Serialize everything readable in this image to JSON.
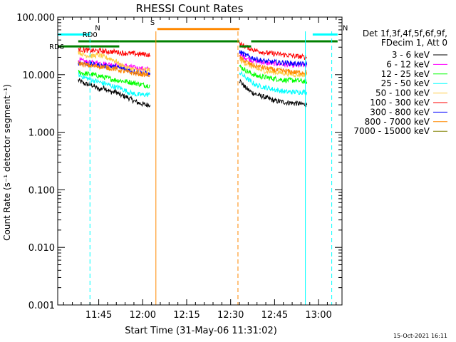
{
  "chart_data": {
    "type": "line",
    "title": "RHESSI Count Rates",
    "xlabel": "Start Time (31-May-06 11:31:02)",
    "ylabel": "Count Rate (s⁻¹ detector segment⁻¹)",
    "yscale": "log",
    "ylim": [
      0.001,
      100
    ],
    "xlim_minutes_after_start": [
      0,
      97
    ],
    "x_ticks": [
      "11:45",
      "12:00",
      "12:15",
      "12:30",
      "12:45",
      "13:00"
    ],
    "y_ticks": [
      "0.001",
      "0.010",
      "0.100",
      "1.000",
      "10.000",
      "100.000"
    ],
    "legend_header": [
      "Det 1f,3f,4f,5f,6f,9f,",
      "FDecim 1, Att 0"
    ],
    "legend_position": "top-right",
    "timestamp": "15-Oct-2021 16:11",
    "series": [
      {
        "name": "3 - 6 keV",
        "color": "#000000",
        "segments": [
          {
            "x": [
              7,
              9,
              12,
              14,
              16,
              18,
              20,
              21
            ],
            "y": [
              8,
              7,
              6.5,
              5.5,
              6,
              5,
              5,
              4.5
            ]
          },
          {
            "x": [
              21,
              24,
              27,
              30,
              31.5
            ],
            "y": [
              4.5,
              4,
              3.3,
              3,
              3
            ]
          },
          {
            "x": [
              62,
              64,
              66,
              68,
              71,
              74,
              78,
              81,
              85
            ],
            "y": [
              8,
              6,
              5,
              4.5,
              4,
              3.5,
              3.3,
              3.2,
              3
            ]
          }
        ]
      },
      {
        "name": "6 - 12 keV",
        "color": "#ff00ff",
        "segments": [
          {
            "x": [
              7,
              9,
              12,
              14,
              16,
              18,
              20,
              21
            ],
            "y": [
              18,
              17,
              16,
              16,
              15.5,
              15,
              15,
              14.5
            ]
          },
          {
            "x": [
              21,
              24,
              27,
              30,
              31.5
            ],
            "y": [
              14.5,
              14,
              13,
              12.5,
              12.5
            ]
          },
          {
            "x": [
              62,
              64,
              66,
              68,
              71,
              74,
              78,
              81,
              85
            ],
            "y": [
              22,
              20,
              18,
              17,
              16,
              15.5,
              15,
              14.5,
              14.5
            ]
          }
        ]
      },
      {
        "name": "12 - 25 keV",
        "color": "#00ff00",
        "segments": [
          {
            "x": [
              7,
              9,
              12,
              14,
              16,
              18,
              20,
              21
            ],
            "y": [
              11,
              10.5,
              10,
              9.5,
              9,
              8.5,
              8,
              8
            ]
          },
          {
            "x": [
              21,
              24,
              27,
              30,
              31.5
            ],
            "y": [
              8,
              7.5,
              7,
              6.5,
              6.5
            ]
          },
          {
            "x": [
              62,
              64,
              66,
              68,
              71,
              74,
              78,
              81,
              85
            ],
            "y": [
              14,
              12,
              10.5,
              9.5,
              9,
              8.5,
              8,
              8,
              7.5
            ]
          }
        ]
      },
      {
        "name": "25 - 50 keV",
        "color": "#00ffff",
        "segments": [
          {
            "x": [
              7,
              9,
              12,
              14,
              16,
              18,
              20,
              21
            ],
            "y": [
              10,
              9,
              8,
              7.5,
              7,
              6.5,
              6,
              6
            ]
          },
          {
            "x": [
              21,
              24,
              27,
              30,
              31.5
            ],
            "y": [
              6,
              5,
              4.5,
              4.5,
              4.5
            ]
          },
          {
            "x": [
              62,
              64,
              66,
              68,
              71,
              74,
              78,
              81,
              85
            ],
            "y": [
              11,
              9,
              7.5,
              6.5,
              6,
              5.5,
              5,
              5,
              5
            ]
          }
        ]
      },
      {
        "name": "50 - 100 keV",
        "color": "#ffcc44",
        "segments": [
          {
            "x": [
              7,
              9,
              12,
              14,
              16,
              18,
              20,
              21
            ],
            "y": [
              25,
              22,
              21,
              22,
              20,
              19,
              17,
              15
            ]
          },
          {
            "x": [
              21,
              24,
              27,
              30,
              31.5
            ],
            "y": [
              15,
              13,
              12,
              12,
              12
            ]
          },
          {
            "x": [
              62,
              64,
              66,
              68,
              71,
              74,
              78,
              81,
              85
            ],
            "y": [
              18,
              16,
              14,
              12.5,
              11.5,
              11,
              10.5,
              10,
              10
            ]
          }
        ]
      },
      {
        "name": "100 - 300 keV",
        "color": "#ff0000",
        "segments": [
          {
            "x": [
              7,
              9,
              12,
              14,
              16,
              18,
              20,
              21
            ],
            "y": [
              28,
              27,
              26,
              26,
              25.5,
              25,
              25,
              24
            ]
          },
          {
            "x": [
              21,
              24,
              27,
              30,
              31.5
            ],
            "y": [
              24,
              23.5,
              23,
              22.5,
              22
            ]
          },
          {
            "x": [
              62,
              64,
              66,
              68,
              71,
              74,
              78,
              81,
              85
            ],
            "y": [
              34,
              31,
              28,
              26,
              24,
              23,
              22,
              21,
              20
            ]
          }
        ]
      },
      {
        "name": "300 - 800 keV",
        "color": "#0000ff",
        "segments": [
          {
            "x": [
              7,
              9,
              12,
              14,
              16,
              18,
              20,
              21
            ],
            "y": [
              16,
              15.5,
              15,
              14.5,
              14,
              14,
              13.5,
              13
            ]
          },
          {
            "x": [
              21,
              24,
              27,
              30,
              31.5
            ],
            "y": [
              13,
              12,
              11,
              10.5,
              10
            ]
          },
          {
            "x": [
              62,
              64,
              66,
              68,
              71,
              74,
              78,
              81,
              85
            ],
            "y": [
              25,
              22,
              20,
              18.5,
              17,
              16.5,
              16,
              15.5,
              15
            ]
          }
        ]
      },
      {
        "name": "800 - 7000 keV",
        "color": "#ff8800",
        "segments": [
          {
            "x": [
              7,
              9,
              12,
              14,
              16,
              18,
              20,
              21
            ],
            "y": [
              16,
              15,
              14,
              14,
              13.5,
              13,
              12.5,
              12
            ]
          },
          {
            "x": [
              21,
              24,
              27,
              30,
              31.5
            ],
            "y": [
              12,
              11,
              10.5,
              10,
              10
            ]
          },
          {
            "x": [
              62,
              64,
              66,
              68,
              71,
              74,
              78,
              81,
              85
            ],
            "y": [
              20,
              17,
              15,
              14,
              13,
              12,
              11.5,
              11,
              11
            ]
          }
        ]
      },
      {
        "name": "7000 - 15000 keV",
        "color": "#808000",
        "segments": []
      }
    ],
    "flag_bars": [
      {
        "label": "N",
        "color": "#00ffff",
        "x": [
          0,
          11
        ],
        "y": 50
      },
      {
        "label": "N",
        "color": "#00ffff",
        "x": [
          87,
          95.5
        ],
        "y": 50
      },
      {
        "label": "S",
        "color": "#ff8800",
        "x": [
          34,
          62
        ],
        "y": 62
      },
      {
        "label": "RD0",
        "color": "#008000",
        "x": [
          7,
          21
        ],
        "y": 38
      },
      {
        "label": "RD6",
        "color": "#008000",
        "x": [
          0,
          21
        ],
        "y": 31
      },
      {
        "label": "",
        "color": "#008000",
        "x": [
          21,
          62
        ],
        "y": 38
      },
      {
        "label": "",
        "color": "#008000",
        "x": [
          62,
          66
        ],
        "y": 31
      },
      {
        "label": "",
        "color": "#008000",
        "x": [
          66,
          95.5
        ],
        "y": 38
      }
    ],
    "vertical_lines": [
      {
        "color": "#00ffff",
        "style": "dashed",
        "x": 11
      },
      {
        "color": "#ff8800",
        "style": "solid",
        "x": 33.5
      },
      {
        "color": "#ff8800",
        "style": "dashed",
        "x": 61.5
      },
      {
        "color": "#00ffff",
        "style": "solid",
        "x": 84.5
      },
      {
        "color": "#00ffff",
        "style": "dashed",
        "x": 93.5
      }
    ]
  }
}
